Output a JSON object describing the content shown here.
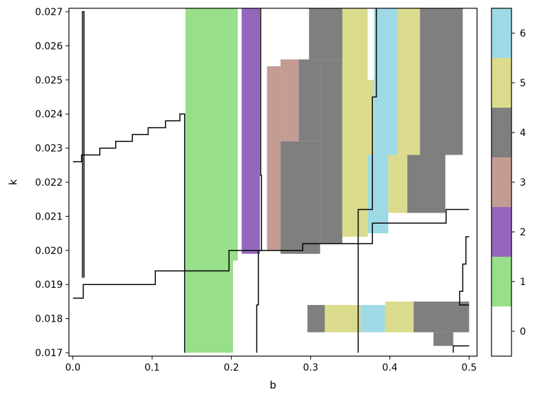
{
  "chart_data": {
    "type": "heatmap",
    "title": "",
    "xlabel": "b",
    "ylabel": "k",
    "xlim": [
      -0.005,
      0.51
    ],
    "ylim": [
      0.0169,
      0.0271
    ],
    "x_ticks": [
      "0.0",
      "0.1",
      "0.2",
      "0.3",
      "0.4",
      "0.5"
    ],
    "y_ticks": [
      "0.017",
      "0.018",
      "0.019",
      "0.020",
      "0.021",
      "0.022",
      "0.023",
      "0.024",
      "0.025",
      "0.026",
      "0.027"
    ],
    "grid": false,
    "colorbar": {
      "ticks": [
        "0",
        "1",
        "2",
        "3",
        "4",
        "5",
        "6"
      ],
      "range": [
        -0.5,
        6.5
      ],
      "colors": [
        "#ffffff",
        "#98df8a",
        "#9467bd",
        "#c49c94",
        "#7f7f7f",
        "#dbdb8d",
        "#9edae5"
      ]
    },
    "regions": [
      {
        "value": 1,
        "b": [
          0.142,
          0.202
        ],
        "k": [
          0.017,
          0.0271
        ]
      },
      {
        "value": 1,
        "b": [
          0.202,
          0.208
        ],
        "k": [
          0.0197,
          0.0271
        ]
      },
      {
        "value": 2,
        "b": [
          0.213,
          0.236
        ],
        "k": [
          0.0199,
          0.0271
        ]
      },
      {
        "value": 3,
        "b": [
          0.245,
          0.262
        ],
        "k": [
          0.02,
          0.0254
        ]
      },
      {
        "value": 3,
        "b": [
          0.262,
          0.285
        ],
        "k": [
          0.0232,
          0.0256
        ]
      },
      {
        "value": 4,
        "b": [
          0.262,
          0.312
        ],
        "k": [
          0.0199,
          0.0232
        ]
      },
      {
        "value": 4,
        "b": [
          0.285,
          0.312
        ],
        "k": [
          0.0232,
          0.0256
        ]
      },
      {
        "value": 4,
        "b": [
          0.298,
          0.354
        ],
        "k": [
          0.0256,
          0.0271
        ]
      },
      {
        "value": 4,
        "b": [
          0.312,
          0.34
        ],
        "k": [
          0.0202,
          0.0256
        ]
      },
      {
        "value": 5,
        "b": [
          0.34,
          0.372
        ],
        "k": [
          0.0204,
          0.0271
        ]
      },
      {
        "value": 5,
        "b": [
          0.372,
          0.38
        ],
        "k": [
          0.0228,
          0.025
        ]
      },
      {
        "value": 6,
        "b": [
          0.372,
          0.398
        ],
        "k": [
          0.0205,
          0.0228
        ]
      },
      {
        "value": 6,
        "b": [
          0.38,
          0.41
        ],
        "k": [
          0.0228,
          0.0271
        ]
      },
      {
        "value": 5,
        "b": [
          0.398,
          0.422
        ],
        "k": [
          0.0211,
          0.0228
        ]
      },
      {
        "value": 5,
        "b": [
          0.41,
          0.438
        ],
        "k": [
          0.0228,
          0.0271
        ]
      },
      {
        "value": 4,
        "b": [
          0.422,
          0.47
        ],
        "k": [
          0.0211,
          0.0228
        ]
      },
      {
        "value": 4,
        "b": [
          0.438,
          0.492
        ],
        "k": [
          0.0228,
          0.0271
        ]
      },
      {
        "value": 4,
        "b": [
          0.296,
          0.318
        ],
        "k": [
          0.0176,
          0.0184
        ]
      },
      {
        "value": 5,
        "b": [
          0.318,
          0.363
        ],
        "k": [
          0.0176,
          0.0184
        ]
      },
      {
        "value": 6,
        "b": [
          0.363,
          0.394
        ],
        "k": [
          0.0176,
          0.0184
        ]
      },
      {
        "value": 5,
        "b": [
          0.394,
          0.43
        ],
        "k": [
          0.0176,
          0.0185
        ]
      },
      {
        "value": 4,
        "b": [
          0.43,
          0.5
        ],
        "k": [
          0.0176,
          0.0185
        ]
      },
      {
        "value": 4,
        "b": [
          0.455,
          0.48
        ],
        "k": [
          0.0172,
          0.0176
        ]
      }
    ],
    "lines": [
      {
        "name": "line-1",
        "points": [
          [
            0.0,
            0.0226
          ],
          [
            0.011,
            0.0226
          ],
          [
            0.011,
            0.0228
          ],
          [
            0.034,
            0.0228
          ],
          [
            0.034,
            0.023
          ],
          [
            0.054,
            0.023
          ],
          [
            0.054,
            0.0232
          ],
          [
            0.075,
            0.0232
          ],
          [
            0.075,
            0.0234
          ],
          [
            0.095,
            0.0234
          ],
          [
            0.095,
            0.0236
          ],
          [
            0.117,
            0.0236
          ],
          [
            0.117,
            0.0238
          ],
          [
            0.135,
            0.0238
          ],
          [
            0.135,
            0.024
          ],
          [
            0.141,
            0.024
          ],
          [
            0.141,
            0.017
          ]
        ]
      },
      {
        "name": "line-2",
        "points": [
          [
            0.0,
            0.0186
          ],
          [
            0.013,
            0.0186
          ],
          [
            0.013,
            0.019
          ],
          [
            0.104,
            0.019
          ],
          [
            0.104,
            0.0194
          ],
          [
            0.197,
            0.0194
          ],
          [
            0.197,
            0.02
          ],
          [
            0.29,
            0.02
          ],
          [
            0.29,
            0.0202
          ],
          [
            0.378,
            0.0202
          ],
          [
            0.378,
            0.0208
          ],
          [
            0.471,
            0.0208
          ],
          [
            0.471,
            0.0212
          ],
          [
            0.5,
            0.0212
          ]
        ]
      },
      {
        "name": "line-3",
        "points": [
          [
            0.012,
            0.0192
          ],
          [
            0.012,
            0.027
          ],
          [
            0.014,
            0.027
          ],
          [
            0.014,
            0.0192
          ]
        ]
      },
      {
        "name": "line-4",
        "points": [
          [
            0.237,
            0.0271
          ],
          [
            0.237,
            0.0222
          ],
          [
            0.238,
            0.0222
          ],
          [
            0.238,
            0.02
          ],
          [
            0.234,
            0.02
          ],
          [
            0.234,
            0.0184
          ],
          [
            0.232,
            0.0184
          ],
          [
            0.232,
            0.017
          ]
        ]
      },
      {
        "name": "line-5",
        "points": [
          [
            0.383,
            0.0271
          ],
          [
            0.383,
            0.0245
          ],
          [
            0.378,
            0.0245
          ],
          [
            0.378,
            0.0212
          ],
          [
            0.36,
            0.0212
          ],
          [
            0.36,
            0.017
          ]
        ]
      },
      {
        "name": "line-6",
        "points": [
          [
            0.5,
            0.0204
          ],
          [
            0.496,
            0.0204
          ],
          [
            0.496,
            0.0196
          ],
          [
            0.492,
            0.0196
          ],
          [
            0.492,
            0.0188
          ],
          [
            0.488,
            0.0188
          ],
          [
            0.488,
            0.0184
          ],
          [
            0.5,
            0.0184
          ]
        ]
      },
      {
        "name": "line-7",
        "points": [
          [
            0.48,
            0.017
          ],
          [
            0.48,
            0.0172
          ],
          [
            0.5,
            0.0172
          ]
        ]
      }
    ]
  }
}
